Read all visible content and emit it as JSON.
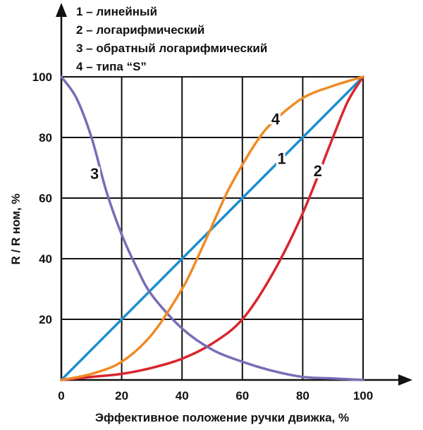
{
  "chart_data": {
    "type": "line",
    "xlabel": "Эффективное положение ручки движка, %",
    "ylabel": "R / R ном, %",
    "xlim": [
      0,
      100
    ],
    "ylim": [
      0,
      100
    ],
    "x_ticks": [
      0,
      20,
      40,
      60,
      80,
      100
    ],
    "y_ticks": [
      20,
      40,
      60,
      80,
      100
    ],
    "grid": true,
    "legend_position": "top-left",
    "legend": [
      "1 – линейный",
      "2 – логарифмический",
      "3 – обратный логарифмический",
      "4 – типа “S”"
    ],
    "series": [
      {
        "name": "1",
        "color": "#1a8fd0",
        "x": [
          0,
          100
        ],
        "y": [
          0,
          100
        ]
      },
      {
        "name": "2",
        "color": "#d8262e",
        "x": [
          0,
          10,
          20,
          30,
          40,
          50,
          60,
          70,
          80,
          90,
          95,
          100
        ],
        "y": [
          0,
          1,
          2,
          4,
          7,
          12,
          20,
          35,
          55,
          80,
          92,
          100
        ]
      },
      {
        "name": "3",
        "color": "#7b6bb5",
        "x": [
          0,
          5,
          10,
          15,
          20,
          25,
          30,
          40,
          50,
          60,
          70,
          80,
          90,
          100
        ],
        "y": [
          100,
          93,
          80,
          62,
          48,
          37,
          28,
          17,
          10,
          6,
          3,
          1,
          0.5,
          0
        ]
      },
      {
        "name": "4",
        "color": "#f08a24",
        "x": [
          0,
          10,
          20,
          30,
          40,
          45,
          50,
          55,
          60,
          65,
          70,
          80,
          90,
          100
        ],
        "y": [
          0,
          2,
          6,
          15,
          30,
          40,
          51,
          62,
          71,
          79,
          85,
          93,
          97,
          100
        ]
      }
    ],
    "curve_labels": [
      {
        "text": "1",
        "x": 73,
        "y": 73
      },
      {
        "text": "2",
        "x": 85,
        "y": 69
      },
      {
        "text": "3",
        "x": 11,
        "y": 68
      },
      {
        "text": "4",
        "x": 71,
        "y": 86
      }
    ]
  }
}
